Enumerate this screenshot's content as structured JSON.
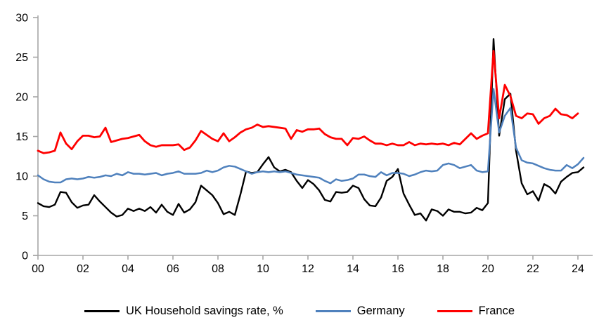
{
  "page": {
    "background": "#FFFFFF"
  },
  "chart_data": {
    "type": "line",
    "title": "",
    "grid": false,
    "legend_position": "bottom",
    "axis_color": "#A6A6A6",
    "text_color": "#000000",
    "x_axis": {
      "label": "",
      "frequency": "quarterly",
      "start_year": 2000,
      "end_year": 2024,
      "tick_interval_years": 2,
      "tick_labels": [
        "00",
        "02",
        "04",
        "06",
        "08",
        "10",
        "12",
        "14",
        "16",
        "18",
        "20",
        "22",
        "24"
      ]
    },
    "y_axis": {
      "label": "",
      "min": 0,
      "max": 30,
      "tick_step": 5,
      "tick_labels": [
        "0",
        "5",
        "10",
        "15",
        "20",
        "25",
        "30"
      ]
    },
    "series": [
      {
        "name": "UK Household savings rate, %",
        "color": "#000000",
        "values": [
          6.6,
          6.2,
          6.1,
          6.4,
          8.0,
          7.9,
          6.7,
          6.0,
          6.3,
          6.4,
          7.6,
          6.8,
          6.1,
          5.4,
          4.9,
          5.1,
          5.9,
          5.6,
          5.9,
          5.6,
          6.1,
          5.4,
          6.4,
          5.5,
          5.1,
          6.5,
          5.4,
          5.8,
          6.7,
          8.8,
          8.2,
          7.6,
          6.6,
          5.2,
          5.5,
          5.1,
          7.7,
          10.6,
          10.4,
          10.5,
          11.5,
          12.4,
          11.1,
          10.6,
          10.8,
          10.5,
          9.4,
          8.5,
          9.5,
          9.0,
          8.2,
          7.0,
          6.8,
          8.0,
          7.9,
          8.0,
          8.8,
          8.5,
          7.1,
          6.3,
          6.2,
          7.3,
          9.4,
          9.9,
          10.9,
          7.8,
          6.4,
          5.1,
          5.3,
          4.4,
          5.8,
          5.6,
          5.0,
          5.8,
          5.5,
          5.5,
          5.3,
          5.4,
          6.0,
          5.7,
          6.6,
          27.3,
          15.1,
          19.7,
          20.4,
          13.2,
          9.1,
          7.7,
          8.1,
          6.9,
          9.0,
          8.6,
          7.8,
          9.3,
          9.9,
          10.4,
          10.5,
          11.1
        ]
      },
      {
        "name": "Germany",
        "color": "#4F81BD",
        "values": [
          10.1,
          9.6,
          9.3,
          9.2,
          9.2,
          9.6,
          9.7,
          9.6,
          9.7,
          9.9,
          9.8,
          9.9,
          10.1,
          10.0,
          10.3,
          10.1,
          10.5,
          10.3,
          10.3,
          10.2,
          10.3,
          10.4,
          10.1,
          10.3,
          10.4,
          10.6,
          10.3,
          10.3,
          10.3,
          10.4,
          10.7,
          10.5,
          10.7,
          11.1,
          11.3,
          11.2,
          10.9,
          10.6,
          10.3,
          10.5,
          10.6,
          10.5,
          10.6,
          10.5,
          10.6,
          10.4,
          10.2,
          10.1,
          10.0,
          9.9,
          9.8,
          9.4,
          9.1,
          9.6,
          9.4,
          9.5,
          9.7,
          10.2,
          10.2,
          10.0,
          9.9,
          10.5,
          10.1,
          10.4,
          10.4,
          10.3,
          10.0,
          10.2,
          10.5,
          10.7,
          10.6,
          10.7,
          11.4,
          11.6,
          11.4,
          11.0,
          11.2,
          11.4,
          10.7,
          10.5,
          10.6,
          21.0,
          15.5,
          17.6,
          18.6,
          13.6,
          12.0,
          11.7,
          11.6,
          11.3,
          11.0,
          10.8,
          10.7,
          10.7,
          11.4,
          11.0,
          11.5,
          12.3
        ]
      },
      {
        "name": "France",
        "color": "#FF0000",
        "values": [
          13.2,
          12.9,
          13.0,
          13.2,
          15.5,
          14.1,
          13.4,
          14.4,
          15.1,
          15.1,
          14.9,
          15.0,
          16.1,
          14.3,
          14.5,
          14.7,
          14.8,
          15.0,
          15.2,
          14.4,
          13.9,
          13.7,
          13.9,
          13.9,
          13.9,
          14.0,
          13.3,
          13.6,
          14.5,
          15.7,
          15.2,
          14.7,
          14.4,
          15.4,
          14.4,
          14.9,
          15.5,
          15.9,
          16.1,
          16.5,
          16.2,
          16.3,
          16.2,
          16.1,
          16.0,
          14.7,
          15.8,
          15.6,
          15.9,
          15.9,
          16.0,
          15.3,
          14.9,
          14.7,
          14.7,
          13.9,
          14.8,
          14.7,
          15.0,
          14.5,
          14.1,
          14.1,
          13.9,
          14.1,
          13.9,
          13.9,
          14.3,
          13.9,
          14.1,
          14.0,
          14.1,
          14.0,
          14.1,
          13.9,
          14.2,
          14.0,
          14.7,
          15.4,
          14.7,
          15.1,
          15.4,
          25.8,
          17.3,
          21.5,
          20.1,
          17.6,
          17.3,
          17.9,
          17.8,
          16.6,
          17.3,
          17.6,
          18.5,
          17.8,
          17.7,
          17.3,
          17.9
        ]
      }
    ]
  }
}
